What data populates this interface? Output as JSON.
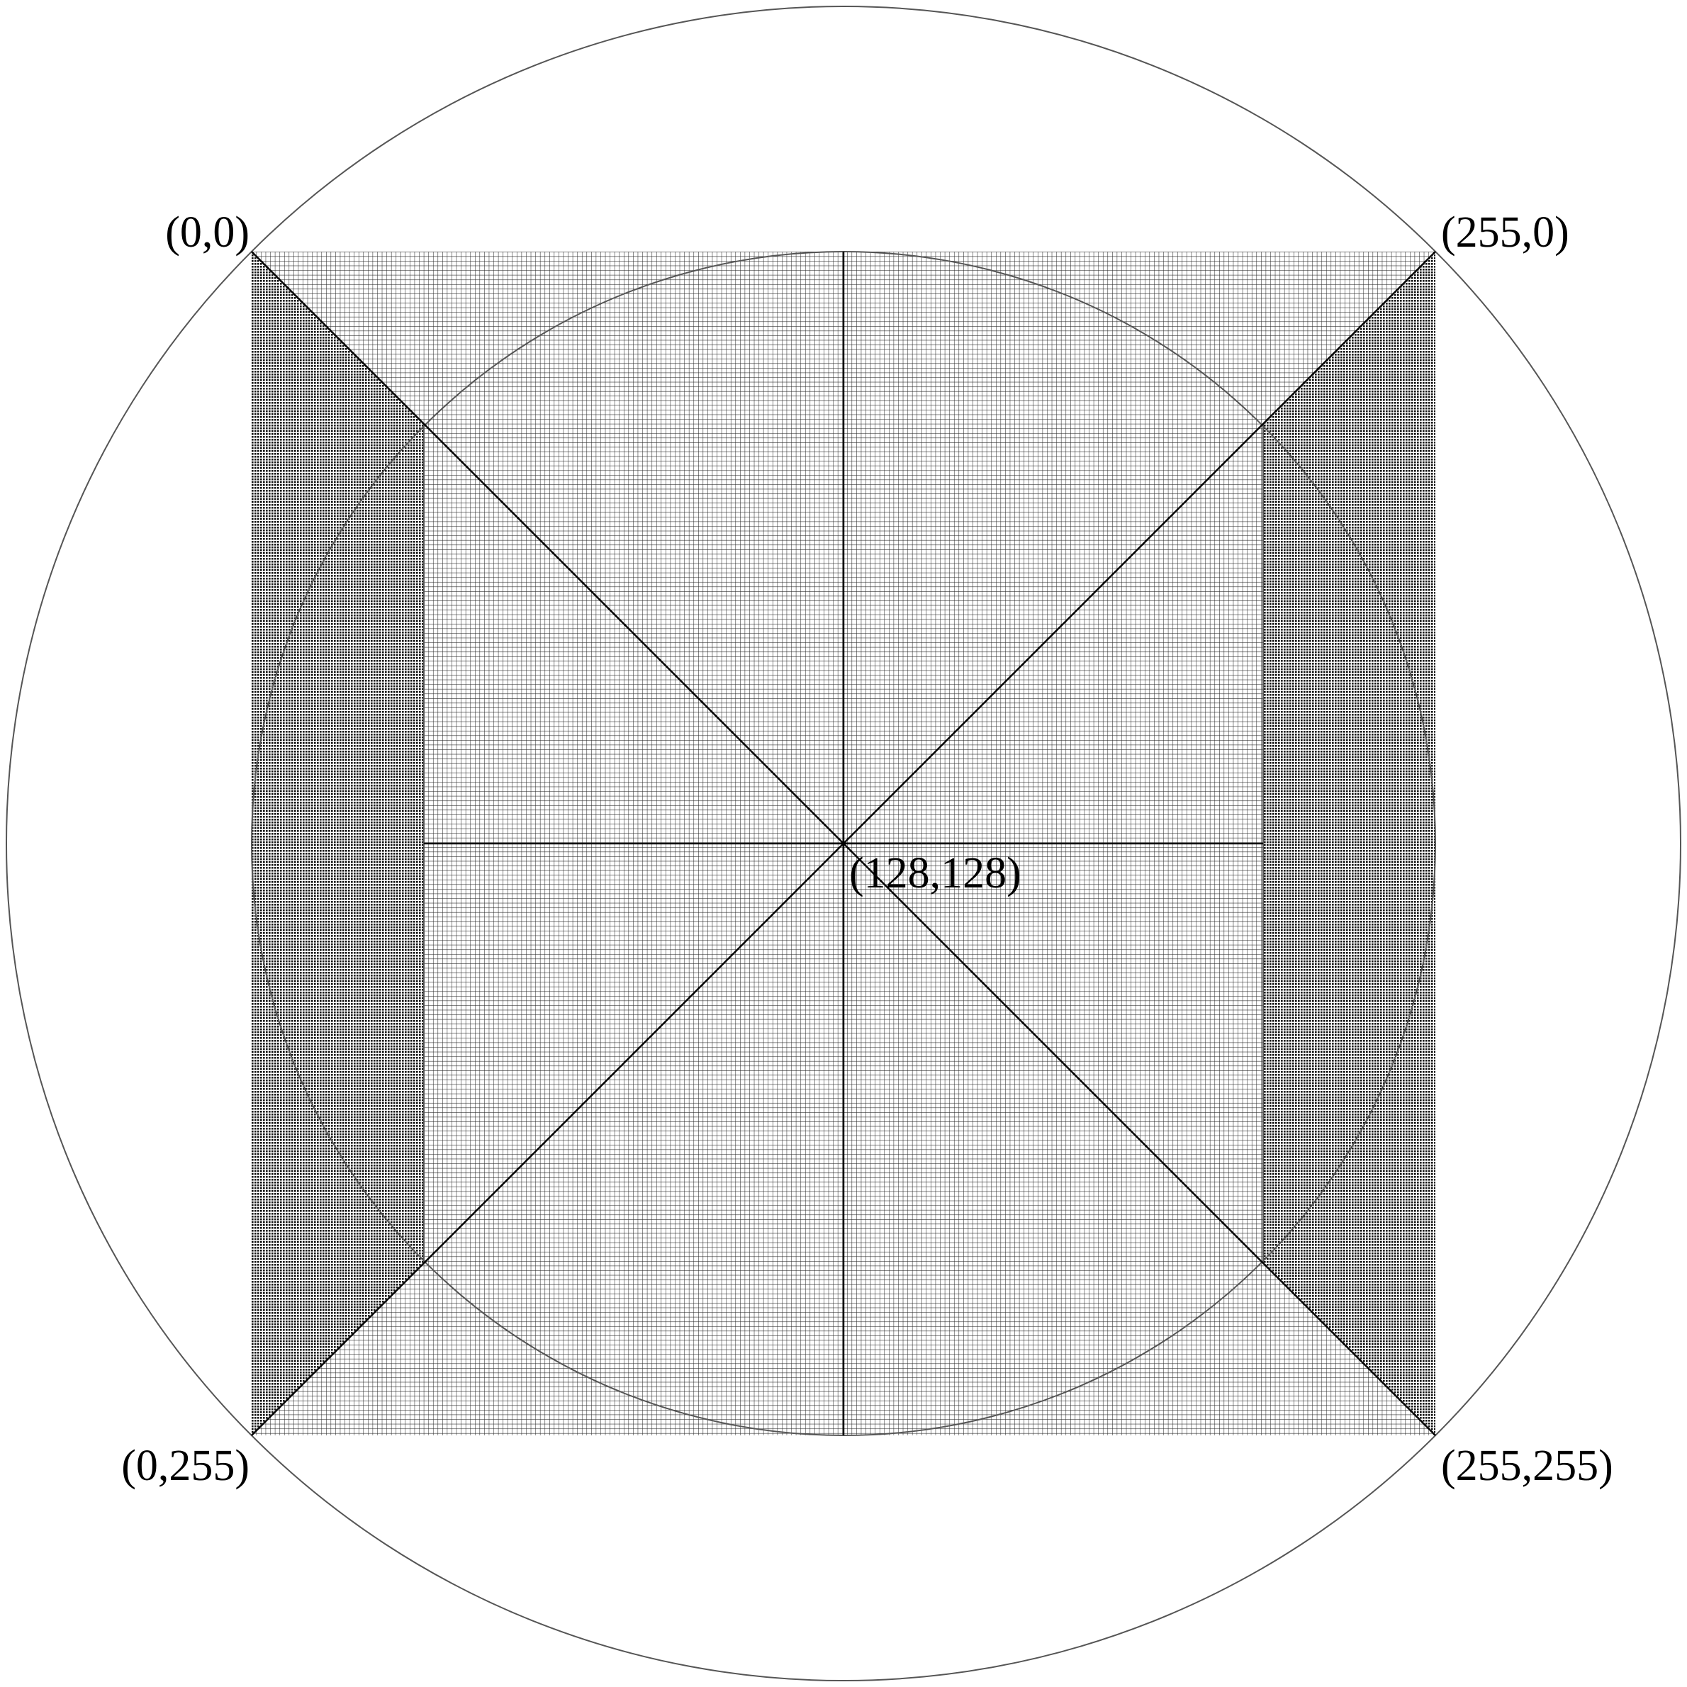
{
  "diagram": {
    "grid_cells": 256,
    "colors": {
      "background": "#ffffff",
      "grid": "#2a2a2a",
      "lines": "#000000",
      "circles": "#5a5a5a"
    },
    "corner_labels": {
      "top_left": "(0,0)",
      "top_right": "(255,0)",
      "bottom_left": "(0,255)",
      "bottom_right": "(255,255)",
      "center": "(128,128)"
    }
  }
}
